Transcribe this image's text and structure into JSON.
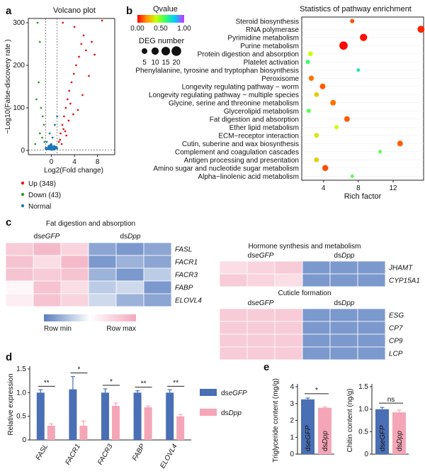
{
  "panels": {
    "a": "a",
    "b": "b",
    "c": "c",
    "d": "d",
    "e": "e"
  },
  "volcano": {
    "title": "Volcano plot",
    "ylabel": "−Log10(False-discovery rate )",
    "xlabel": "Log2(Fold change)",
    "xticks": [
      "0",
      "4",
      "8"
    ],
    "yticks": [
      "0",
      "100",
      "200",
      "300"
    ],
    "legend": [
      {
        "label": "Up (348)",
        "color": "#e41a1c"
      },
      {
        "label": "Down (43)",
        "color": "#2ca02c"
      },
      {
        "label": "Normal",
        "color": "#1f77b4"
      }
    ]
  },
  "enrichment": {
    "title": "Statistics of pathway enrichment",
    "qvalue_title": "Qvalue",
    "qvalue_ticks": [
      "0.00",
      "0.50",
      "1.00"
    ],
    "deg_title": "DEG number",
    "deg_sizes": [
      "5",
      "10",
      "15",
      "20"
    ],
    "xlabel": "Rich factor",
    "xticks": [
      "4",
      "8",
      "12"
    ]
  },
  "chart_data": [
    {
      "type": "scatter",
      "title": "Volcano plot",
      "xlabel": "Log2(Fold change)",
      "ylabel": "−Log10(False-discovery rate )",
      "xlim": [
        -4,
        11
      ],
      "ylim": [
        -10,
        310
      ],
      "series": [
        {
          "name": "Up (348)",
          "color": "#e41a1c",
          "points": [
            [
              1.3,
              20
            ],
            [
              1.6,
              40
            ],
            [
              1.9,
              60
            ],
            [
              2.2,
              80
            ],
            [
              2.5,
              100
            ],
            [
              2.8,
              120
            ],
            [
              3.1,
              140
            ],
            [
              3.5,
              160
            ],
            [
              3.9,
              180
            ],
            [
              4.3,
              200
            ],
            [
              4.8,
              220
            ],
            [
              5.2,
              250
            ],
            [
              5.6,
              270
            ],
            [
              6,
              235
            ],
            [
              7,
              255
            ],
            [
              8.8,
              305
            ],
            [
              2,
              300
            ],
            [
              4,
              290
            ],
            [
              7.5,
              225
            ],
            [
              3.3,
              110
            ],
            [
              2.6,
              35
            ],
            [
              1.8,
              15
            ],
            [
              4.6,
              95
            ],
            [
              5.4,
              130
            ],
            [
              6.5,
              175
            ],
            [
              2.1,
              50
            ],
            [
              3,
              70
            ],
            [
              3.8,
              85
            ],
            [
              1.5,
              25
            ],
            [
              2.4,
              45
            ]
          ]
        },
        {
          "name": "Down (43)",
          "color": "#2ca02c",
          "points": [
            [
              -2.4,
              300
            ],
            [
              -2.0,
              255
            ],
            [
              -2.2,
              160
            ],
            [
              -2.6,
              120
            ],
            [
              -1.8,
              100
            ],
            [
              -1.5,
              80
            ],
            [
              -1.3,
              60
            ],
            [
              -2.0,
              40
            ],
            [
              -1.6,
              30
            ],
            [
              -1.2,
              20
            ],
            [
              -2.8,
              15
            ]
          ]
        },
        {
          "name": "Normal",
          "color": "#1f77b4",
          "points": [
            [
              -1,
              5
            ],
            [
              -0.5,
              10
            ],
            [
              0,
              15
            ],
            [
              0.5,
              10
            ],
            [
              1,
              5
            ],
            [
              0.2,
              30
            ],
            [
              -0.3,
              40
            ],
            [
              0.6,
              60
            ],
            [
              1,
              80
            ],
            [
              -0.8,
              20
            ]
          ]
        }
      ]
    },
    {
      "type": "scatter",
      "title": "Statistics of pathway enrichment",
      "xlabel": "Rich factor",
      "xlim": [
        1.5,
        15.5
      ],
      "categories": [
        "Steroid biosynthesis",
        "RNA polymerase",
        "Pyrimidine metabolism",
        "Purine metabolism",
        "Protein digestion and absorption",
        "Platelet activation",
        "Phenylalanine, tyrosine and tryptophan biosynthesis",
        "Peroxisome",
        "Longevity regulating pathway − worm",
        "Longevity regulating pathway − multiple species",
        "Glycine, serine and threonine metabolism",
        "Glycerolipid metabolism",
        "Fat digestion and absorption",
        "Ether lipid metabolism",
        "ECM−receptor interaction",
        "Cutin, suberine and wax biosynthesis",
        "Complement and coagulation cascades",
        "Antigen processing and presentation",
        "Amino sugar and nucleotide sugar metabolism",
        "Alpha−linolenic acid metabolism"
      ],
      "rich_factor": [
        7.3,
        15.2,
        8.6,
        6.3,
        2.5,
        2.2,
        8.0,
        2.6,
        3.9,
        3.2,
        5.1,
        2.3,
        6.7,
        5.5,
        3.2,
        12.8,
        10.5,
        3.2,
        4.2,
        7.3
      ],
      "deg_number": [
        2,
        9,
        10,
        14,
        3,
        2,
        1,
        4,
        5,
        3,
        5,
        2,
        5,
        2,
        3,
        5,
        1,
        3,
        6,
        1
      ],
      "qvalue": [
        0.1,
        0.05,
        0.02,
        0.01,
        0.4,
        0.6,
        0.7,
        0.15,
        0.12,
        0.3,
        0.15,
        0.55,
        0.12,
        0.4,
        0.35,
        0.12,
        0.55,
        0.3,
        0.1,
        0.55
      ]
    },
    {
      "type": "heatmap",
      "title": "Fat digestion and absorption",
      "groups": [
        "dseGFP",
        "dsDpp"
      ],
      "rows": [
        "FASL",
        "FACR1",
        "FACR3",
        "FABP",
        "ELOVL4"
      ],
      "values": [
        [
          0.8,
          0.9,
          0.75,
          0.15,
          0.1,
          0.15
        ],
        [
          0.85,
          0.7,
          0.9,
          0.1,
          0.2,
          0.15
        ],
        [
          0.85,
          0.8,
          0.85,
          0.2,
          0.1,
          0.3
        ],
        [
          0.55,
          0.85,
          0.7,
          0.3,
          0.35,
          0.1
        ],
        [
          0.6,
          0.85,
          0.75,
          0.35,
          0.2,
          0.15
        ]
      ],
      "legend_min": "Row min",
      "legend_max": "Row max"
    },
    {
      "type": "heatmap",
      "title": "Hormone synthesis and metabolism",
      "groups": [
        "dseGFP",
        "dsDpp"
      ],
      "rows": [
        "JHAMT",
        "CYP15A1"
      ],
      "values": [
        [
          0.7,
          0.75,
          0.8,
          0.1,
          0.1,
          0.1
        ],
        [
          0.8,
          0.75,
          0.7,
          0.1,
          0.1,
          0.1
        ]
      ]
    },
    {
      "type": "heatmap",
      "title": "Cuticle formation",
      "groups": [
        "dseGFP",
        "dsDpp"
      ],
      "rows": [
        "ESG",
        "CP7",
        "CP9",
        "LCP"
      ],
      "values": [
        [
          0.8,
          0.8,
          0.8,
          0.1,
          0.1,
          0.1
        ],
        [
          0.8,
          0.8,
          0.8,
          0.1,
          0.1,
          0.1
        ],
        [
          0.8,
          0.8,
          0.8,
          0.1,
          0.1,
          0.1
        ],
        [
          0.8,
          0.8,
          0.8,
          0.1,
          0.1,
          0.1
        ]
      ]
    },
    {
      "type": "bar",
      "ylabel": "Relative expression",
      "categories": [
        "FASL",
        "FACR1",
        "FACR3",
        "FABP",
        "ELOVL4"
      ],
      "ylim": [
        0,
        1.5
      ],
      "yticks": [
        "0",
        "0.5",
        "1.0",
        "1.5"
      ],
      "series": [
        {
          "name": "dseGFP",
          "color": "#4a6fb5",
          "values": [
            1.0,
            1.07,
            1.0,
            1.0,
            1.0
          ],
          "errors": [
            0.06,
            0.27,
            0.08,
            0.04,
            0.06
          ]
        },
        {
          "name": "dsDpp",
          "color": "#f4a6b8",
          "values": [
            0.3,
            0.3,
            0.72,
            0.69,
            0.5
          ],
          "errors": [
            0.04,
            0.1,
            0.06,
            0.03,
            0.04
          ]
        }
      ],
      "significance": [
        "**",
        "*",
        "*",
        "**",
        "**"
      ]
    },
    {
      "type": "bar",
      "ylabel": "Triglyceride content (mg/g)",
      "categories": [
        "dseGFP",
        "dsDpp"
      ],
      "values": [
        3.25,
        2.75
      ],
      "errors": [
        0.08,
        0.05
      ],
      "ylim": [
        0,
        4
      ],
      "yticks": [
        "0",
        "1",
        "2",
        "3",
        "4"
      ],
      "significance": "*"
    },
    {
      "type": "bar",
      "ylabel": "Chitin content (ng/g)",
      "categories": [
        "dseGFP",
        "dsDpp"
      ],
      "values": [
        1.0,
        0.93
      ],
      "errors": [
        0.04,
        0.05
      ],
      "ylim": [
        0,
        1.5
      ],
      "yticks": [
        "0",
        "0.5",
        "1.0",
        "1.5"
      ],
      "significance": "ns"
    }
  ]
}
